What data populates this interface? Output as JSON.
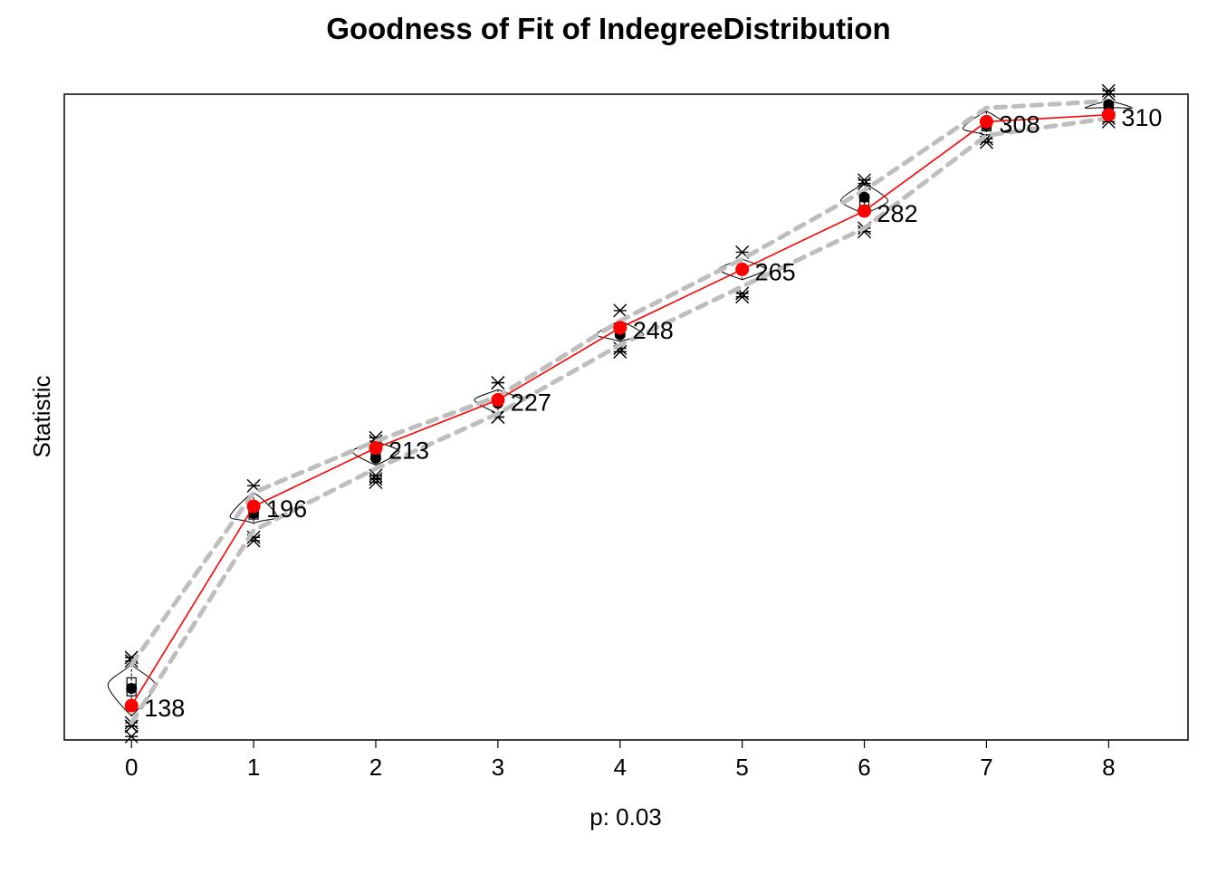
{
  "chart_data": {
    "type": "line",
    "title": "Goodness of Fit of IndegreeDistribution",
    "xlabel": "p: 0.03",
    "ylabel": "Statistic",
    "categories": [
      "0",
      "1",
      "2",
      "3",
      "4",
      "5",
      "6",
      "7",
      "8"
    ],
    "x": [
      0,
      1,
      2,
      3,
      4,
      5,
      6,
      7,
      8
    ],
    "xlim": [
      -0.55,
      8.65
    ],
    "ylim": [
      128,
      316
    ],
    "y_ticks_shown": false,
    "grid": false,
    "series": [
      {
        "role": "observed",
        "color": "#ff0000",
        "values": [
          138,
          196,
          213,
          227,
          248,
          265,
          282,
          308,
          310
        ],
        "labels": [
          "138",
          "196",
          "213",
          "227",
          "248",
          "265",
          "282",
          "308",
          "310"
        ]
      },
      {
        "role": "simulated-band-upper",
        "color": "#bebebe",
        "style": "dashed",
        "values": [
          150,
          200,
          215,
          228,
          250,
          268,
          288,
          312,
          314
        ]
      },
      {
        "role": "simulated-band-lower",
        "color": "#bebebe",
        "style": "dashed",
        "values": [
          133,
          189,
          207,
          223,
          243,
          260,
          277,
          304,
          309
        ]
      }
    ],
    "simulated_means": [
      143,
      194,
      210,
      226,
      246,
      265,
      286,
      307,
      313
    ],
    "simulated_medians": [
      144,
      193,
      212,
      227,
      246,
      265,
      285,
      306,
      312
    ],
    "violin_ranges": [
      [
        135,
        150
      ],
      [
        191,
        200
      ],
      [
        208,
        215
      ],
      [
        223,
        230
      ],
      [
        244,
        250
      ],
      [
        262,
        268
      ],
      [
        281,
        290
      ],
      [
        304,
        311
      ],
      [
        312,
        314
      ]
    ],
    "simulated_outliers": [
      [
        152,
        152,
        151,
        132,
        132,
        133,
        129
      ],
      [
        202,
        187,
        186
      ],
      [
        216,
        215,
        203,
        204,
        205
      ],
      [
        232,
        232,
        222,
        222
      ],
      [
        253,
        242,
        241,
        241
      ],
      [
        270,
        258,
        257
      ],
      [
        291,
        290,
        277,
        276
      ],
      [
        303,
        302
      ],
      [
        317,
        316,
        309,
        308
      ]
    ]
  }
}
